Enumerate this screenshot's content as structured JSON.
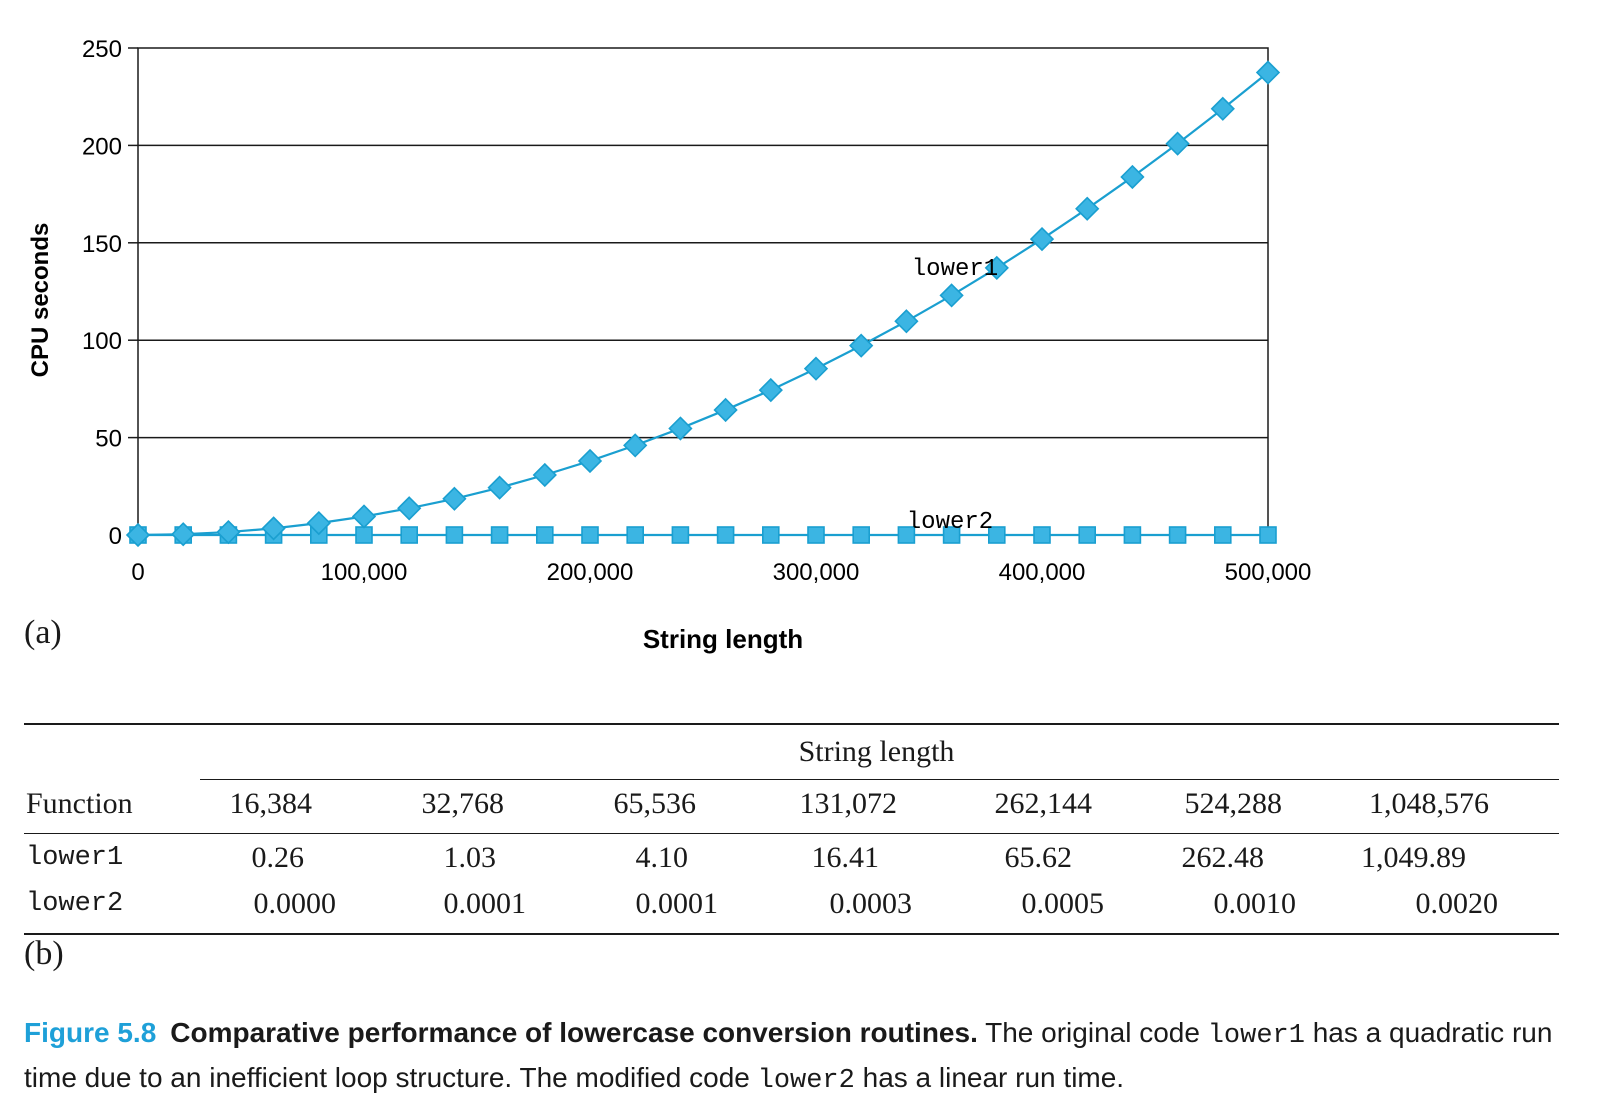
{
  "chart_data": {
    "type": "line",
    "xlabel": "String length",
    "ylabel": "CPU seconds",
    "xlim": [
      0,
      500000
    ],
    "ylim": [
      0,
      250
    ],
    "x_ticks": [
      0,
      100000,
      200000,
      300000,
      400000,
      500000
    ],
    "x_tick_labels": [
      "0",
      "100,000",
      "200,000",
      "300,000",
      "400,000",
      "500,000"
    ],
    "y_ticks": [
      0,
      50,
      100,
      150,
      200,
      250
    ],
    "y_tick_labels": [
      "0",
      "50",
      "100",
      "150",
      "200",
      "250"
    ],
    "grid": "horizontal",
    "color": "#3bb5e3",
    "line_color": "#1a9fd0",
    "x": [
      0,
      20000,
      40000,
      60000,
      80000,
      100000,
      120000,
      140000,
      160000,
      180000,
      200000,
      220000,
      240000,
      260000,
      280000,
      300000,
      320000,
      340000,
      360000,
      380000,
      400000,
      420000,
      440000,
      460000,
      480000,
      500000
    ],
    "series": [
      {
        "name": "lower1",
        "marker": "diamond",
        "values": [
          0,
          0.4,
          1.5,
          3.4,
          6.1,
          9.5,
          13.7,
          18.6,
          24.3,
          30.8,
          38,
          46,
          54.7,
          64.2,
          74.4,
          85.4,
          97.2,
          109.7,
          123,
          137.1,
          151.9,
          167.5,
          183.8,
          200.9,
          218.8,
          237.4
        ],
        "label": "lower1"
      },
      {
        "name": "lower2",
        "marker": "square",
        "values": [
          0,
          0,
          0,
          0,
          0,
          0,
          0,
          0,
          0,
          0,
          0,
          0,
          0,
          0,
          0,
          0,
          0,
          0,
          0,
          0,
          0,
          0,
          0,
          0,
          0,
          0
        ],
        "label": "lower2"
      }
    ]
  },
  "panel_a_label": "(a)",
  "panel_b_label": "(b)",
  "table": {
    "group_header": "String length",
    "first_col_header": "Function",
    "columns": [
      "16,384",
      "32,768",
      "65,536",
      "131,072",
      "262,144",
      "524,288",
      "1,048,576"
    ],
    "rows": [
      {
        "name": "lower1",
        "values": [
          "0.26",
          "1.03",
          "4.10",
          "16.41",
          "65.62",
          "262.48",
          "1,049.89"
        ]
      },
      {
        "name": "lower2",
        "values": [
          "0.0000",
          "0.0001",
          "0.0001",
          "0.0003",
          "0.0005",
          "0.0010",
          "0.0020"
        ]
      }
    ]
  },
  "caption": {
    "figure": "Figure 5.8",
    "title": "Comparative performance of lowercase conversion routines.",
    "t1": " The original code ",
    "c1": "lower1",
    "t2": " has a quadratic run time due to an inefficient loop structure. The modified code ",
    "c2": "lower2",
    "t3": " has a linear run time."
  }
}
